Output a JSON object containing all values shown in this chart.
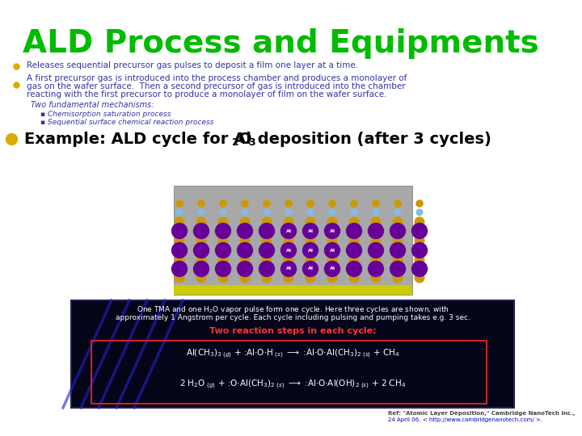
{
  "title": "ALD Process and Equipments",
  "title_color": "#00bb00",
  "title_fontsize": 28,
  "bullet1": "Releases sequential precursor gas pulses to deposit a film one layer at a time.",
  "bullet2_lines": [
    "A first precursor gas is introduced into the process chamber and produces a monolayer of",
    "gas on the wafer surface.  Then a second precursor of gas is introduced into the chamber",
    "reacting with the first precursor to produce a monolayer of film on the wafer surface."
  ],
  "italic1": "Two fundamental mechanisms:",
  "sub1": "Chemisorption saturation process",
  "sub2": "Sequential surface chemical reaction process",
  "bg_color": "#ffffff",
  "bullet_color": "#ddaa00",
  "text_color": "#3333aa",
  "italic_color": "#3333aa",
  "sub_color": "#3333aa",
  "bullet3_color": "#ddaa00",
  "dark_bg": "#05051a",
  "reaction_header_color": "#ff3333",
  "ref_color": "#444444",
  "ref_url_color": "#0000cc",
  "al_color": "#660099",
  "o_color": "#cc9900",
  "h_color": "#88bbdd",
  "img_gray": "#a8a8a8",
  "img_yellow": "#cccc00"
}
